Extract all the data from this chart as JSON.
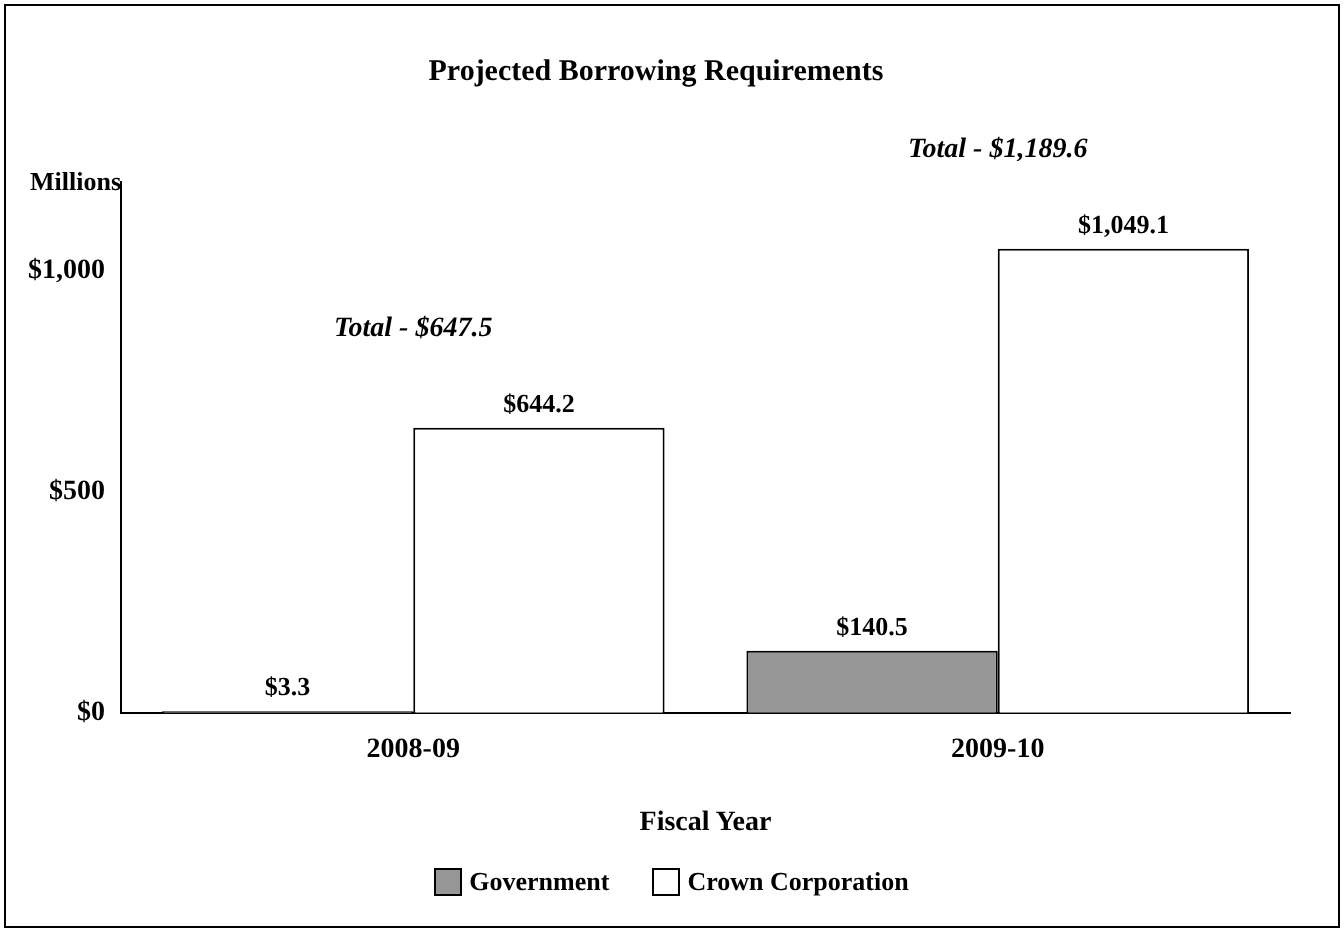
{
  "chart_data": {
    "type": "bar",
    "title": "Projected Borrowing Requirements",
    "ylabel": "Millions",
    "xlabel": "Fiscal Year",
    "categories": [
      "2008-09",
      "2009-10"
    ],
    "series": [
      {
        "name": "Government",
        "color": "#969696",
        "values": [
          3.3,
          140.5
        ],
        "value_labels": [
          "$3.3",
          "$140.5"
        ]
      },
      {
        "name": "Crown Corporation",
        "color": "#ffffff",
        "values": [
          644.2,
          1049.1
        ],
        "value_labels": [
          "$644.2",
          "$1,049.1"
        ]
      }
    ],
    "ylim": [
      0,
      1200
    ],
    "yticks": [
      {
        "value": 0,
        "label": "$0"
      },
      {
        "value": 500,
        "label": "$500"
      },
      {
        "value": 1000,
        "label": "$1,000"
      }
    ],
    "annotations": [
      "Total - $647.5",
      "Total - $1,189.6"
    ],
    "grid": false,
    "legend": "bottom"
  }
}
